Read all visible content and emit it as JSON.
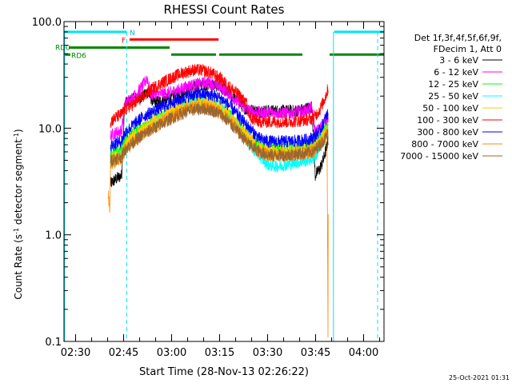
{
  "chart_data": {
    "type": "line",
    "title": "RHESSI Count Rates",
    "xlabel": "Start Time (28-Nov-13 02:26:22)",
    "ylabel_main": "Count Rate (s",
    "ylabel_sup1": "-1",
    "ylabel_mid": " detector segment",
    "ylabel_sup2": "-1",
    "ylabel_end": ")",
    "y_scale": "log",
    "xlim_minutes": [
      0,
      100
    ],
    "ylim": [
      0.1,
      100.0
    ],
    "x_tick_labels": [
      {
        "label": "02:30",
        "min": 3.63
      },
      {
        "label": "02:45",
        "min": 18.63
      },
      {
        "label": "03:00",
        "min": 33.63
      },
      {
        "label": "03:15",
        "min": 48.63
      },
      {
        "label": "03:30",
        "min": 63.63
      },
      {
        "label": "03:45",
        "min": 78.63
      },
      {
        "label": "04:00",
        "min": 93.63
      }
    ],
    "y_tick_labels": [
      {
        "label": "0.1",
        "value": 0.1
      },
      {
        "label": "1.0",
        "value": 1.0
      },
      {
        "label": "10.0",
        "value": 10.0
      },
      {
        "label": "100.0",
        "value": 100.0
      }
    ],
    "legend": {
      "header_1": "Det 1f,3f,4f,5f,6f,9f,",
      "header_2": "FDecim 1, Att 0",
      "placement": "right"
    },
    "series": [
      {
        "name": "3 - 6 keV",
        "color": "#000000",
        "points": [
          [
            14.5,
            3.0
          ],
          [
            16,
            3.3
          ],
          [
            18,
            3.6
          ],
          [
            19,
            17
          ],
          [
            22,
            19
          ],
          [
            25,
            20
          ],
          [
            26,
            22
          ],
          [
            28,
            17.5
          ],
          [
            30,
            18
          ],
          [
            33,
            19
          ],
          [
            36,
            21
          ],
          [
            39,
            23
          ],
          [
            42,
            25
          ],
          [
            45,
            26
          ],
          [
            48,
            25
          ],
          [
            51,
            22
          ],
          [
            54,
            18
          ],
          [
            57,
            15
          ],
          [
            60,
            14.5
          ],
          [
            63,
            14.5
          ],
          [
            66,
            14.5
          ],
          [
            69,
            14.5
          ],
          [
            72,
            14.5
          ],
          [
            75,
            15
          ],
          [
            77.5,
            16
          ],
          [
            78.5,
            3.6
          ],
          [
            80,
            4.2
          ],
          [
            81,
            5
          ],
          [
            82,
            6.5
          ],
          [
            82.6,
            8
          ]
        ]
      },
      {
        "name": "6 - 12 keV",
        "color": "#ff00ff",
        "points": [
          [
            14.5,
            8.5
          ],
          [
            16,
            9
          ],
          [
            18,
            9.5
          ],
          [
            19,
            17
          ],
          [
            22,
            20
          ],
          [
            25,
            26
          ],
          [
            26,
            30
          ],
          [
            27,
            21
          ],
          [
            30,
            21
          ],
          [
            33,
            21.5
          ],
          [
            36,
            23
          ],
          [
            39,
            25
          ],
          [
            42,
            26
          ],
          [
            45,
            27
          ],
          [
            48,
            25
          ],
          [
            51,
            22
          ],
          [
            54,
            18
          ],
          [
            57,
            15
          ],
          [
            60,
            14
          ],
          [
            63,
            14
          ],
          [
            66,
            14
          ],
          [
            69,
            14
          ],
          [
            72,
            14
          ],
          [
            75,
            14.5
          ],
          [
            77.5,
            15.5
          ],
          [
            78.5,
            9
          ],
          [
            80,
            10
          ],
          [
            81,
            11
          ],
          [
            82,
            12
          ],
          [
            82.6,
            13
          ]
        ]
      },
      {
        "name": "12 - 25 keV",
        "color": "#00ff00",
        "points": [
          [
            14.5,
            5.6
          ],
          [
            16,
            5.9
          ],
          [
            18,
            6.1
          ],
          [
            19,
            7.5
          ],
          [
            22,
            9
          ],
          [
            25,
            10
          ],
          [
            28,
            12
          ],
          [
            31,
            13
          ],
          [
            34,
            14.5
          ],
          [
            37,
            16
          ],
          [
            40,
            17.5
          ],
          [
            43,
            18
          ],
          [
            46,
            17.5
          ],
          [
            49,
            16
          ],
          [
            52,
            13
          ],
          [
            55,
            10.5
          ],
          [
            58,
            8
          ],
          [
            61,
            6.8
          ],
          [
            64,
            6.3
          ],
          [
            67,
            6.3
          ],
          [
            70,
            6.3
          ],
          [
            73,
            6.4
          ],
          [
            76,
            6.6
          ],
          [
            78,
            7
          ],
          [
            80,
            8
          ],
          [
            81.5,
            9.5
          ],
          [
            82.6,
            10.5
          ]
        ]
      },
      {
        "name": "25 - 50 keV",
        "color": "#00ffff",
        "points": [
          [
            14.5,
            4.8
          ],
          [
            16,
            5
          ],
          [
            18,
            5.4
          ],
          [
            19,
            6.5
          ],
          [
            22,
            8
          ],
          [
            25,
            9.5
          ],
          [
            28,
            11
          ],
          [
            31,
            12.5
          ],
          [
            34,
            14
          ],
          [
            37,
            15.5
          ],
          [
            40,
            17
          ],
          [
            43,
            17.5
          ],
          [
            46,
            17
          ],
          [
            49,
            15.5
          ],
          [
            52,
            12.5
          ],
          [
            55,
            9.5
          ],
          [
            58,
            7
          ],
          [
            61,
            5.5
          ],
          [
            64,
            4.5
          ],
          [
            67,
            4.4
          ],
          [
            70,
            4.6
          ],
          [
            73,
            4.8
          ],
          [
            76,
            5
          ],
          [
            78,
            5.2
          ],
          [
            80,
            6.5
          ],
          [
            81.5,
            8
          ],
          [
            82.6,
            9.5
          ]
        ]
      },
      {
        "name": "50 - 100 keV",
        "color": "#ffcc00",
        "points": [
          [
            14.5,
            5.0
          ],
          [
            16,
            5.3
          ],
          [
            18,
            5.6
          ],
          [
            19,
            7
          ],
          [
            22,
            8.5
          ],
          [
            25,
            10
          ],
          [
            28,
            11.5
          ],
          [
            31,
            13
          ],
          [
            34,
            14.5
          ],
          [
            37,
            16
          ],
          [
            40,
            17
          ],
          [
            43,
            17.5
          ],
          [
            46,
            17
          ],
          [
            49,
            15.5
          ],
          [
            52,
            13
          ],
          [
            55,
            10
          ],
          [
            58,
            8
          ],
          [
            61,
            6.6
          ],
          [
            64,
            6
          ],
          [
            67,
            6
          ],
          [
            70,
            6
          ],
          [
            73,
            6.1
          ],
          [
            76,
            6.3
          ],
          [
            78,
            6.6
          ],
          [
            80,
            7.5
          ],
          [
            81.5,
            9
          ],
          [
            82.6,
            10
          ]
        ]
      },
      {
        "name": "100 - 300 keV",
        "color": "#ff0000",
        "points": [
          [
            14.5,
            11.5
          ],
          [
            16,
            12.5
          ],
          [
            18,
            13.5
          ],
          [
            19,
            15
          ],
          [
            22,
            17
          ],
          [
            25,
            20
          ],
          [
            28,
            24
          ],
          [
            31,
            27
          ],
          [
            34,
            30
          ],
          [
            37,
            33
          ],
          [
            40,
            35
          ],
          [
            43,
            35
          ],
          [
            46,
            33
          ],
          [
            49,
            29
          ],
          [
            52,
            24
          ],
          [
            55,
            20
          ],
          [
            57,
            17
          ],
          [
            58,
            12.5
          ],
          [
            61,
            11.5
          ],
          [
            64,
            11.5
          ],
          [
            67,
            11.5
          ],
          [
            70,
            11.5
          ],
          [
            73,
            11.7
          ],
          [
            76,
            12
          ],
          [
            78,
            12.5
          ],
          [
            80,
            15
          ],
          [
            81.5,
            19
          ],
          [
            82.6,
            24
          ]
        ]
      },
      {
        "name": "300 - 800 keV",
        "color": "#0000ff",
        "points": [
          [
            14.5,
            6.8
          ],
          [
            16,
            7.2
          ],
          [
            18,
            7.6
          ],
          [
            19,
            9
          ],
          [
            22,
            11
          ],
          [
            25,
            13
          ],
          [
            28,
            14.5
          ],
          [
            31,
            16
          ],
          [
            34,
            17.5
          ],
          [
            37,
            19
          ],
          [
            40,
            20.5
          ],
          [
            43,
            21
          ],
          [
            46,
            20.5
          ],
          [
            49,
            19
          ],
          [
            52,
            16
          ],
          [
            55,
            12.5
          ],
          [
            58,
            10
          ],
          [
            61,
            8
          ],
          [
            64,
            7.5
          ],
          [
            67,
            7.5
          ],
          [
            70,
            7.5
          ],
          [
            73,
            7.6
          ],
          [
            76,
            7.8
          ],
          [
            78,
            8.2
          ],
          [
            80,
            9.5
          ],
          [
            81.5,
            12
          ],
          [
            82.6,
            14
          ]
        ]
      },
      {
        "name": "800 - 7000 keV",
        "color": "#ff8800",
        "points": [
          [
            13.8,
            2.5
          ],
          [
            14.3,
            1.65
          ],
          [
            14.5,
            4.5
          ],
          [
            16,
            4.8
          ],
          [
            18,
            5.1
          ],
          [
            19,
            6
          ],
          [
            22,
            7.5
          ],
          [
            25,
            8.8
          ],
          [
            28,
            10
          ],
          [
            31,
            11.5
          ],
          [
            34,
            13
          ],
          [
            37,
            14.5
          ],
          [
            40,
            15.5
          ],
          [
            43,
            16
          ],
          [
            46,
            15.5
          ],
          [
            49,
            14
          ],
          [
            52,
            11.5
          ],
          [
            55,
            9
          ],
          [
            58,
            7
          ],
          [
            61,
            6
          ],
          [
            64,
            5.5
          ],
          [
            67,
            5.5
          ],
          [
            70,
            5.5
          ],
          [
            73,
            5.6
          ],
          [
            76,
            5.8
          ],
          [
            78,
            6
          ],
          [
            80,
            7
          ],
          [
            81.5,
            8
          ],
          [
            82.2,
            9
          ],
          [
            82.5,
            0.12
          ],
          [
            82.6,
            9.5
          ]
        ]
      },
      {
        "name": "7000 - 15000 keV",
        "color": "#996633",
        "points": [
          [
            14.5,
            5.0
          ],
          [
            16,
            5.2
          ],
          [
            18,
            5.4
          ],
          [
            19,
            6.3
          ],
          [
            22,
            7.6
          ],
          [
            25,
            8.8
          ],
          [
            28,
            10
          ],
          [
            31,
            11.2
          ],
          [
            34,
            12.5
          ],
          [
            37,
            13.8
          ],
          [
            40,
            14.8
          ],
          [
            43,
            15.2
          ],
          [
            46,
            14.8
          ],
          [
            49,
            13.5
          ],
          [
            52,
            11
          ],
          [
            55,
            8.8
          ],
          [
            58,
            7
          ],
          [
            61,
            6
          ],
          [
            64,
            5.6
          ],
          [
            67,
            5.6
          ],
          [
            70,
            5.6
          ],
          [
            73,
            5.7
          ],
          [
            76,
            5.9
          ],
          [
            78,
            6.1
          ],
          [
            80,
            7
          ],
          [
            81.5,
            8
          ],
          [
            82.6,
            9
          ]
        ]
      }
    ],
    "annotations": {
      "attenuator_bars": [
        {
          "label": "N",
          "color": "#00e5ee",
          "segments": [
            [
              0,
              19.6
            ],
            [
              84.4,
              100
            ]
          ],
          "y_value": 80
        },
        {
          "label": "F",
          "color": "#ff0000",
          "segments": [
            [
              20.5,
              48.3
            ]
          ],
          "y_value": 68
        }
      ],
      "decimation_bars": [
        {
          "label": "RD0",
          "color": "#008800",
          "segments": [
            [
              1.5,
              33
            ]
          ],
          "y_value": 57
        },
        {
          "label": "RD6",
          "color": "#008800",
          "segments": [
            [
              0,
              2
            ],
            [
              33.5,
              47.5
            ],
            [
              48.5,
              74.5
            ],
            [
              83,
              100
            ]
          ],
          "y_value": 49
        }
      ],
      "vertical_lines": [
        {
          "min": 0.2,
          "style": "solid",
          "color": "#00e5ee"
        },
        {
          "min": 19.6,
          "style": "dashed",
          "color": "#00e5ee"
        },
        {
          "min": 84.2,
          "style": "solid",
          "color": "#00e5ee"
        },
        {
          "min": 98.0,
          "style": "dashed",
          "color": "#00e5ee"
        }
      ]
    }
  },
  "footer": {
    "timestamp": "25-Oct-2021 01:31"
  }
}
